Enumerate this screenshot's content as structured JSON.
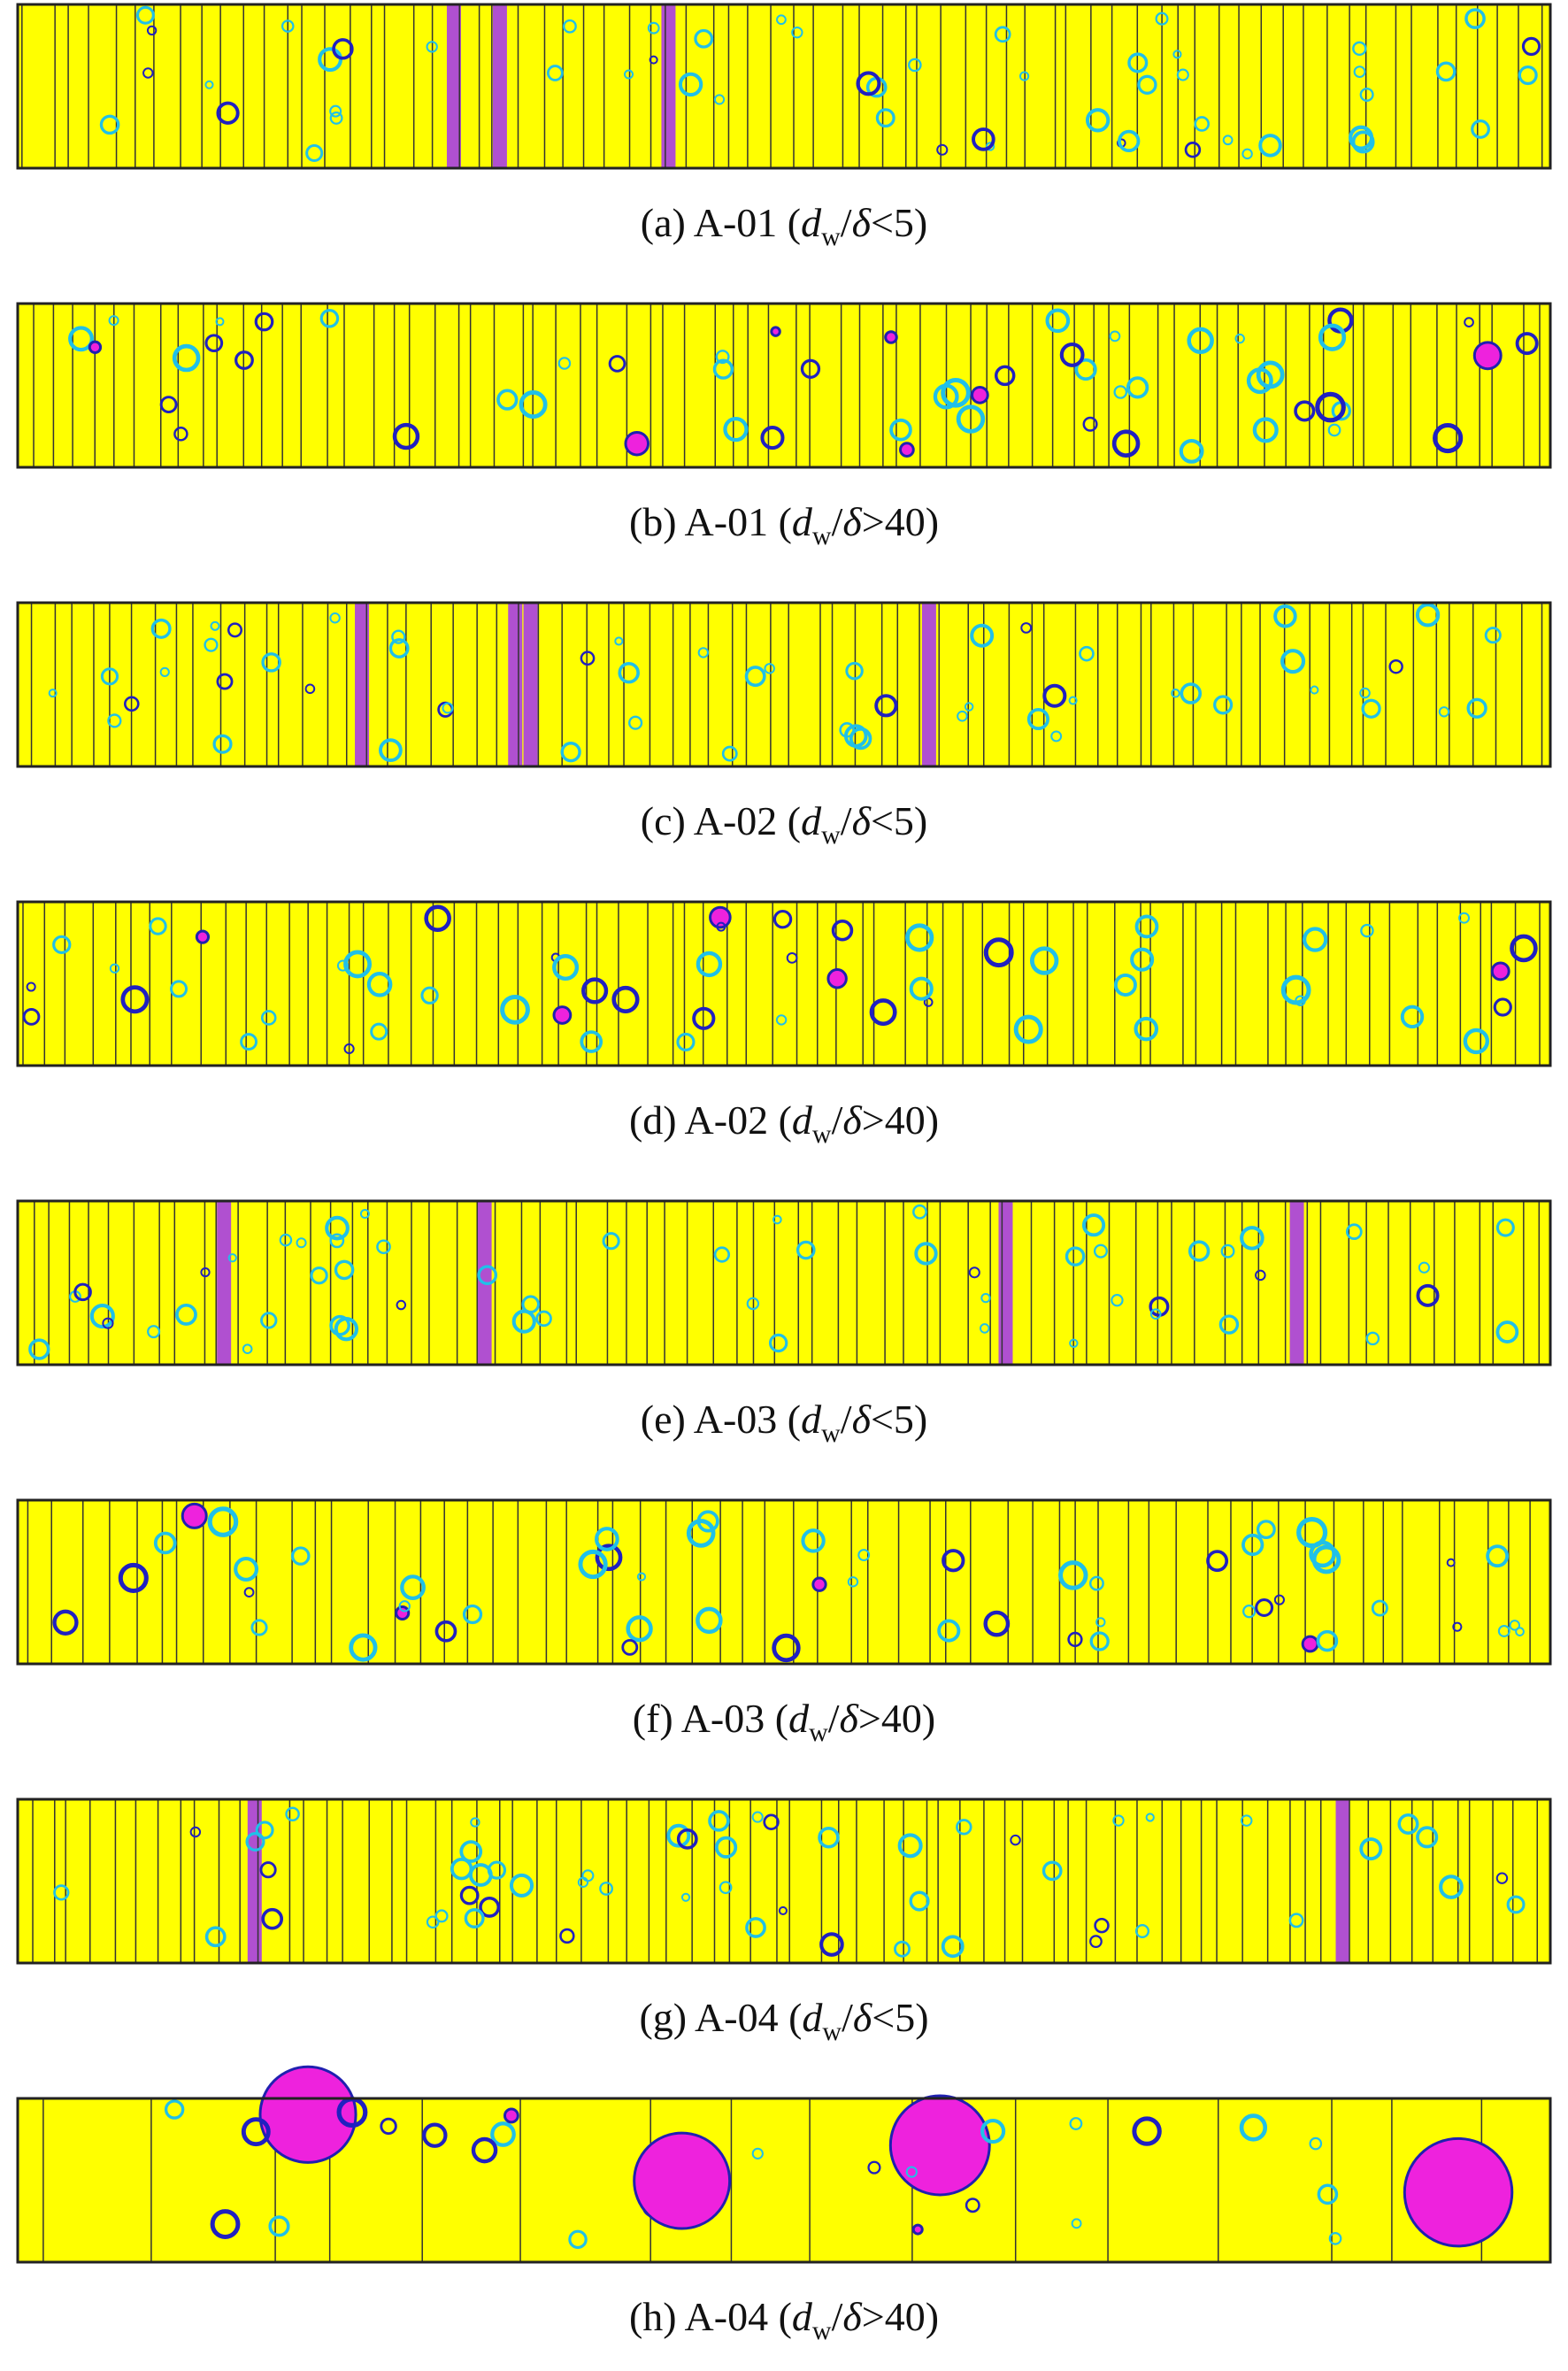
{
  "ratio": {
    "numerator": "d",
    "subscript": "w",
    "separator": "/",
    "denominator": "δ"
  },
  "panels": [
    {
      "prefix": "(a) A-01 (",
      "suffix": "<5)"
    },
    {
      "prefix": "(b) A-01 (",
      "suffix": ">40)"
    },
    {
      "prefix": "(c) A-02 (",
      "suffix": "<5)"
    },
    {
      "prefix": "(d) A-02 (",
      "suffix": ">40)"
    },
    {
      "prefix": "(e) A-03 (",
      "suffix": "<5)"
    },
    {
      "prefix": "(f) A-03 (",
      "suffix": ">40)"
    },
    {
      "prefix": "(g) A-04 (",
      "suffix": "<5)"
    },
    {
      "prefix": "(h) A-04 (",
      "suffix": ">40)"
    }
  ]
}
